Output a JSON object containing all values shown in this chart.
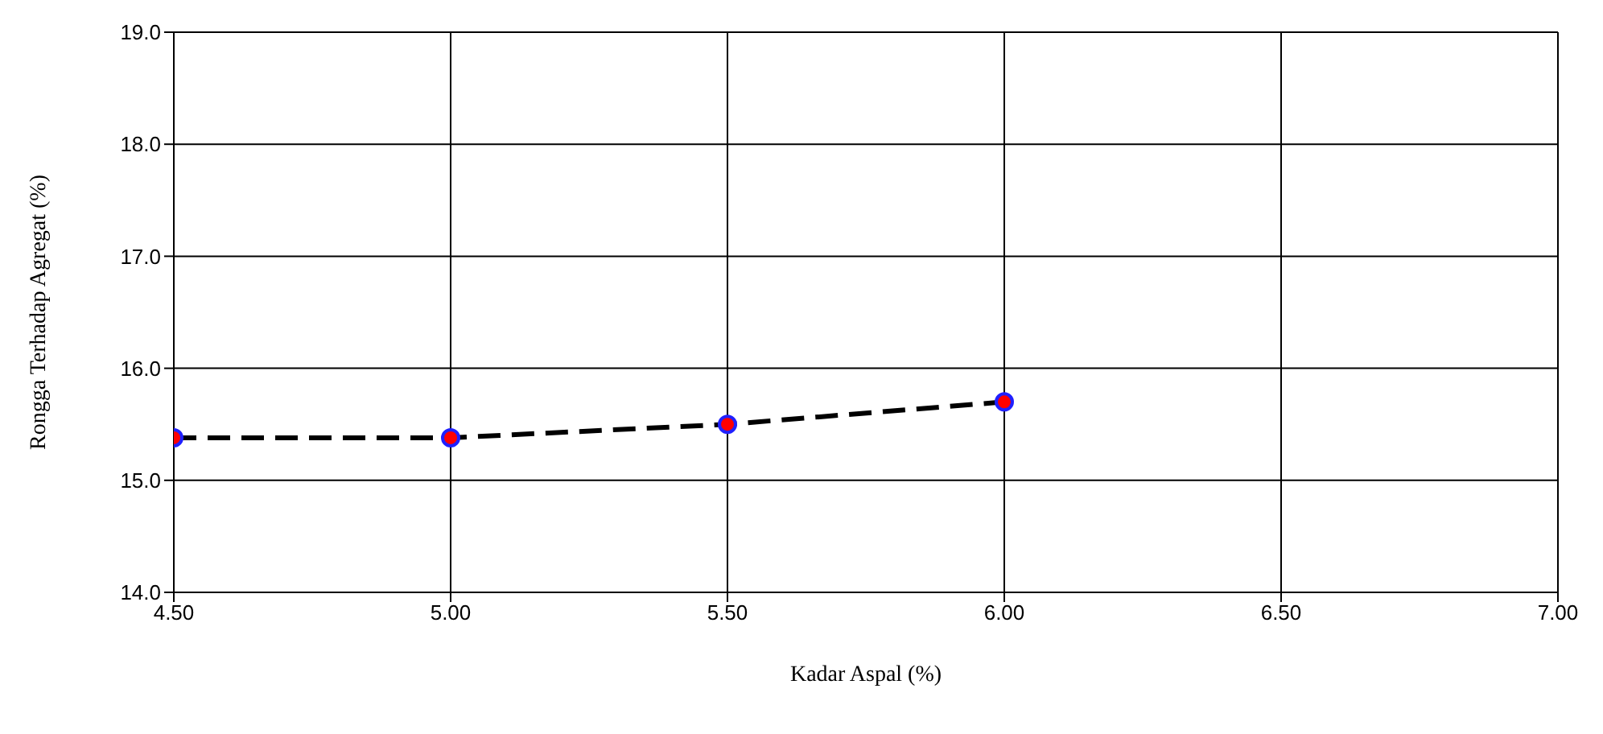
{
  "chart_data": {
    "type": "line",
    "xlabel": "Kadar Aspal (%)",
    "ylabel": "Rongga Terhadap Agregat (%)",
    "x": [
      4.5,
      5.0,
      5.5,
      6.0
    ],
    "series": [
      {
        "color": "#000000",
        "values": [
          15.38,
          15.38,
          15.5,
          15.7
        ]
      }
    ],
    "xlim": [
      4.5,
      7.0
    ],
    "xticks": [
      {
        "value": 4.5,
        "label": "4.50"
      },
      {
        "value": 5.0,
        "label": "5.00"
      },
      {
        "value": 5.5,
        "label": "5.50"
      },
      {
        "value": 6.0,
        "label": "6.00"
      },
      {
        "value": 6.5,
        "label": "6.50"
      },
      {
        "value": 7.0,
        "label": "7.00"
      }
    ],
    "ylim": [
      14.0,
      19.0
    ],
    "yticks": [
      {
        "value": 14,
        "label": "14.0"
      },
      {
        "value": 15,
        "label": "15.0"
      },
      {
        "value": 16,
        "label": "16.0"
      },
      {
        "value": 17,
        "label": "17.0"
      },
      {
        "value": 18,
        "label": "18.0"
      },
      {
        "value": 19,
        "label": "19.0"
      }
    ],
    "grid": true,
    "marker": "circle",
    "line_style": "dashed"
  }
}
